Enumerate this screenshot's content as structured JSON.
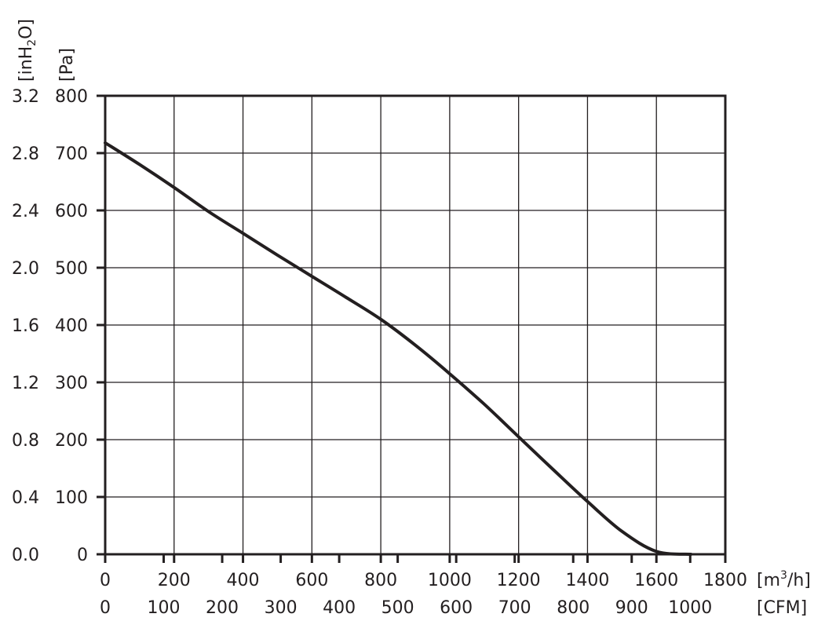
{
  "chart_data": {
    "type": "line",
    "title": "",
    "colors": {
      "line": "#231f20",
      "grid": "#231f20",
      "text": "#231f20"
    },
    "grid": true,
    "x_axis_primary": {
      "unit": "[m³/h]",
      "unit_base": "[m",
      "unit_sup": "3",
      "unit_tail": "/h]",
      "range": [
        0,
        1800
      ],
      "ticks": [
        "0",
        "200",
        "400",
        "600",
        "800",
        "1000",
        "1200",
        "1400",
        "1600",
        "1800"
      ]
    },
    "x_axis_secondary": {
      "unit": "[CFM]",
      "range": [
        0,
        1060
      ],
      "ticks": [
        "0",
        "100",
        "200",
        "300",
        "400",
        "500",
        "600",
        "700",
        "800",
        "900",
        "1000"
      ],
      "tick_values": [
        0,
        100,
        200,
        300,
        400,
        500,
        600,
        700,
        800,
        900,
        1000
      ]
    },
    "y_axis_primary": {
      "unit": "[Pa]",
      "range": [
        0,
        800
      ],
      "ticks": [
        "0",
        "100",
        "200",
        "300",
        "400",
        "500",
        "600",
        "700",
        "800"
      ]
    },
    "y_axis_secondary": {
      "unit": "[inH2O]",
      "unit_base": "[inH",
      "unit_sub": "2",
      "unit_tail": "O]",
      "ticks": [
        "0.0",
        "0.4",
        "0.8",
        "1.2",
        "1.6",
        "2.0",
        "2.4",
        "2.8",
        "3.2"
      ]
    },
    "series": [
      {
        "x": [
          0,
          100,
          200,
          300,
          400,
          500,
          600,
          700,
          800,
          900,
          1000,
          1100,
          1200,
          1300,
          1400,
          1500,
          1600,
          1700
        ],
        "y": [
          718,
          680,
          640,
          598,
          560,
          522,
          485,
          448,
          410,
          365,
          315,
          262,
          205,
          148,
          92,
          40,
          5,
          0
        ]
      }
    ]
  }
}
